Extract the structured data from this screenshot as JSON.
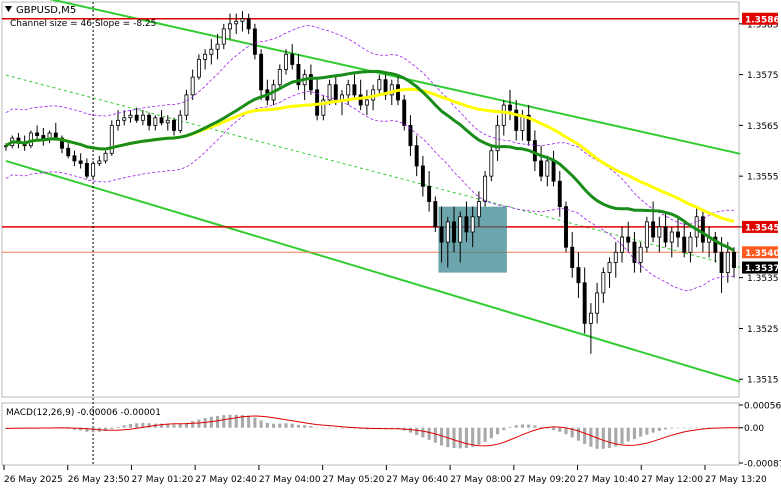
{
  "header": {
    "symbol": "GBPUSD,M5",
    "indicator_note": "Channel size = 46 Slope = -8.25"
  },
  "chart_data": {
    "type": "candlestick",
    "symbol": "GBPUSD",
    "timeframe": "M5",
    "y_axis_ticks": [
      "1.3585",
      "1.3575",
      "1.3565",
      "1.3555",
      "1.3545",
      "1.3535",
      "1.3525",
      "1.3515"
    ],
    "ylim": [
      1.35115,
      1.35893
    ],
    "x_axis_labels": [
      "26 May 2025",
      "26 May 23:50",
      "27 May 01:20",
      "27 May 02:40",
      "27 May 04:00",
      "27 May 05:20",
      "27 May 06:40",
      "27 May 08:00",
      "27 May 09:20",
      "27 May 10:40",
      "27 May 12:00",
      "27 May 13:20"
    ],
    "price_tags": [
      {
        "label": "1.3586",
        "value": 1.3586,
        "color": "#e00000"
      },
      {
        "label": "1.3545",
        "value": 1.3545,
        "color": "#e00000"
      },
      {
        "label": "1.3540",
        "value": 1.354,
        "color": "#ff5a1f"
      },
      {
        "label": "1.3537",
        "value": 1.3537,
        "color": "#000000"
      }
    ],
    "horizontal_levels": [
      1.3586,
      1.3545,
      1.354
    ],
    "channel": {
      "upper": [
        [
          0,
          1.35918
        ],
        [
          118,
          1.35594
        ]
      ],
      "lower": [
        [
          0,
          1.3558
        ],
        [
          118,
          1.35145
        ]
      ],
      "middle": [
        [
          0,
          1.35749
        ],
        [
          118,
          1.3537
        ]
      ]
    },
    "highlight_zone": {
      "from_index": 70,
      "to_index": 80,
      "high": 1.3549,
      "low": 1.3536
    },
    "ohlc": [
      [
        1.3561,
        1.35615,
        1.356,
        1.3561
      ],
      [
        1.3561,
        1.3563,
        1.35605,
        1.35625
      ],
      [
        1.35625,
        1.35635,
        1.35605,
        1.35615
      ],
      [
        1.35615,
        1.3563,
        1.356,
        1.3561
      ],
      [
        1.3561,
        1.3564,
        1.35605,
        1.35635
      ],
      [
        1.35635,
        1.3565,
        1.3562,
        1.3563
      ],
      [
        1.3563,
        1.35645,
        1.3561,
        1.35625
      ],
      [
        1.35625,
        1.3564,
        1.35615,
        1.35635
      ],
      [
        1.35635,
        1.35655,
        1.3562,
        1.35625
      ],
      [
        1.35625,
        1.3563,
        1.35595,
        1.35605
      ],
      [
        1.35605,
        1.35615,
        1.35585,
        1.3559
      ],
      [
        1.3559,
        1.356,
        1.3557,
        1.3558
      ],
      [
        1.3558,
        1.35595,
        1.35565,
        1.35575
      ],
      [
        1.35575,
        1.35585,
        1.35545,
        1.3555
      ],
      [
        1.3555,
        1.3558,
        1.35545,
        1.35575
      ],
      [
        1.35575,
        1.3559,
        1.3557,
        1.3558
      ],
      [
        1.3558,
        1.356,
        1.35575,
        1.35595
      ],
      [
        1.35595,
        1.3566,
        1.3559,
        1.3565
      ],
      [
        1.3565,
        1.3568,
        1.3564,
        1.3566
      ],
      [
        1.3566,
        1.3568,
        1.3565,
        1.35665
      ],
      [
        1.35665,
        1.3568,
        1.35655,
        1.3567
      ],
      [
        1.3567,
        1.35685,
        1.35655,
        1.3566
      ],
      [
        1.3566,
        1.3568,
        1.3565,
        1.3567
      ],
      [
        1.3567,
        1.35675,
        1.3564,
        1.3565
      ],
      [
        1.3565,
        1.3567,
        1.3564,
        1.35665
      ],
      [
        1.35665,
        1.3568,
        1.3565,
        1.35655
      ],
      [
        1.35655,
        1.3567,
        1.3564,
        1.3566
      ],
      [
        1.3566,
        1.35665,
        1.3563,
        1.3564
      ],
      [
        1.3564,
        1.3568,
        1.35635,
        1.3567
      ],
      [
        1.3567,
        1.3572,
        1.3566,
        1.3571
      ],
      [
        1.3571,
        1.3576,
        1.357,
        1.35745
      ],
      [
        1.35745,
        1.3579,
        1.3574,
        1.3578
      ],
      [
        1.3578,
        1.358,
        1.3576,
        1.3579
      ],
      [
        1.3579,
        1.3582,
        1.3577,
        1.358
      ],
      [
        1.358,
        1.3583,
        1.3578,
        1.3581
      ],
      [
        1.3581,
        1.3585,
        1.358,
        1.3584
      ],
      [
        1.3584,
        1.3587,
        1.3582,
        1.3585
      ],
      [
        1.3585,
        1.3587,
        1.3583,
        1.35855
      ],
      [
        1.35855,
        1.35875,
        1.35835,
        1.3586
      ],
      [
        1.3586,
        1.3587,
        1.3583,
        1.3584
      ],
      [
        1.3584,
        1.3585,
        1.3578,
        1.3579
      ],
      [
        1.3579,
        1.358,
        1.357,
        1.3572
      ],
      [
        1.3572,
        1.3574,
        1.3569,
        1.357
      ],
      [
        1.357,
        1.3574,
        1.3569,
        1.3573
      ],
      [
        1.3573,
        1.3577,
        1.3572,
        1.3576
      ],
      [
        1.3576,
        1.358,
        1.3575,
        1.3579
      ],
      [
        1.3579,
        1.3581,
        1.3576,
        1.3577
      ],
      [
        1.3577,
        1.3579,
        1.3572,
        1.3573
      ],
      [
        1.3573,
        1.3576,
        1.357,
        1.3575
      ],
      [
        1.3575,
        1.3577,
        1.3571,
        1.3572
      ],
      [
        1.3572,
        1.3574,
        1.3566,
        1.3567
      ],
      [
        1.3567,
        1.3571,
        1.3566,
        1.357
      ],
      [
        1.357,
        1.3574,
        1.3569,
        1.3573
      ],
      [
        1.3573,
        1.3575,
        1.3569,
        1.357
      ],
      [
        1.357,
        1.3572,
        1.3567,
        1.3571
      ],
      [
        1.3571,
        1.3574,
        1.3569,
        1.3573
      ],
      [
        1.3573,
        1.3575,
        1.357,
        1.3571
      ],
      [
        1.3571,
        1.3574,
        1.3568,
        1.3569
      ],
      [
        1.3569,
        1.3572,
        1.3567,
        1.357
      ],
      [
        1.357,
        1.3573,
        1.3568,
        1.3572
      ],
      [
        1.3572,
        1.3575,
        1.3571,
        1.3574
      ],
      [
        1.3574,
        1.3575,
        1.357,
        1.3571
      ],
      [
        1.3571,
        1.3574,
        1.3569,
        1.3573
      ],
      [
        1.3573,
        1.3575,
        1.3569,
        1.357
      ],
      [
        1.357,
        1.3571,
        1.3564,
        1.3565
      ],
      [
        1.3565,
        1.3567,
        1.3559,
        1.3561
      ],
      [
        1.3561,
        1.3563,
        1.3555,
        1.3557
      ],
      [
        1.3557,
        1.3559,
        1.3551,
        1.3553
      ],
      [
        1.3553,
        1.3556,
        1.3548,
        1.355
      ],
      [
        1.355,
        1.3551,
        1.3544,
        1.3545
      ],
      [
        1.3545,
        1.3549,
        1.3538,
        1.3542
      ],
      [
        1.3542,
        1.3547,
        1.3537,
        1.3546
      ],
      [
        1.3546,
        1.3549,
        1.354,
        1.3542
      ],
      [
        1.3542,
        1.3548,
        1.3538,
        1.3547
      ],
      [
        1.3547,
        1.355,
        1.3542,
        1.3544
      ],
      [
        1.3544,
        1.3549,
        1.3541,
        1.3547
      ],
      [
        1.3547,
        1.3552,
        1.3545,
        1.355
      ],
      [
        1.355,
        1.3556,
        1.3549,
        1.3555
      ],
      [
        1.3555,
        1.3561,
        1.3554,
        1.356
      ],
      [
        1.356,
        1.3567,
        1.3558,
        1.3565
      ],
      [
        1.3565,
        1.357,
        1.3563,
        1.3569
      ],
      [
        1.3569,
        1.3572,
        1.3566,
        1.3568
      ],
      [
        1.3568,
        1.357,
        1.3562,
        1.3564
      ],
      [
        1.3564,
        1.3568,
        1.3562,
        1.3567
      ],
      [
        1.3567,
        1.3569,
        1.3561,
        1.3562
      ],
      [
        1.3562,
        1.3564,
        1.3556,
        1.3558
      ],
      [
        1.3558,
        1.3561,
        1.3554,
        1.3555
      ],
      [
        1.3555,
        1.3559,
        1.3553,
        1.3558
      ],
      [
        1.3558,
        1.356,
        1.3553,
        1.3554
      ],
      [
        1.3554,
        1.3556,
        1.3547,
        1.3549
      ],
      [
        1.3549,
        1.355,
        1.354,
        1.3541
      ],
      [
        1.3541,
        1.3544,
        1.3535,
        1.3537
      ],
      [
        1.3537,
        1.354,
        1.3531,
        1.3534
      ],
      [
        1.3534,
        1.3537,
        1.3524,
        1.3526
      ],
      [
        1.3526,
        1.353,
        1.352,
        1.3528
      ],
      [
        1.3528,
        1.3534,
        1.3526,
        1.3532
      ],
      [
        1.3532,
        1.3537,
        1.353,
        1.3536
      ],
      [
        1.3536,
        1.3539,
        1.3533,
        1.3538
      ],
      [
        1.3538,
        1.3542,
        1.3535,
        1.354
      ],
      [
        1.354,
        1.3545,
        1.3538,
        1.3543
      ],
      [
        1.3543,
        1.3546,
        1.354,
        1.3542
      ],
      [
        1.3542,
        1.3544,
        1.3536,
        1.3538
      ],
      [
        1.3538,
        1.3542,
        1.3536,
        1.3541
      ],
      [
        1.3541,
        1.3547,
        1.354,
        1.3546
      ],
      [
        1.3546,
        1.355,
        1.3542,
        1.3543
      ],
      [
        1.3543,
        1.3547,
        1.354,
        1.3545
      ],
      [
        1.3545,
        1.3548,
        1.3541,
        1.3542
      ],
      [
        1.3542,
        1.3545,
        1.3539,
        1.3544
      ],
      [
        1.3544,
        1.3547,
        1.3541,
        1.3543
      ],
      [
        1.3543,
        1.3546,
        1.3539,
        1.354
      ],
      [
        1.354,
        1.3544,
        1.3538,
        1.3543
      ],
      [
        1.3543,
        1.3549,
        1.3541,
        1.3547
      ],
      [
        1.3547,
        1.3548,
        1.354,
        1.3542
      ],
      [
        1.3542,
        1.3545,
        1.3539,
        1.3543
      ],
      [
        1.3543,
        1.3544,
        1.3538,
        1.354
      ],
      [
        1.354,
        1.3543,
        1.3532,
        1.3536
      ],
      [
        1.3536,
        1.3542,
        1.3534,
        1.354
      ],
      [
        1.354,
        1.3541,
        1.3535,
        1.3537
      ]
    ],
    "macd": {
      "label": "MACD(12,26,9) -0.00006 -0.00001",
      "ticks": [
        "0.00056",
        "0.00",
        "-0.00087"
      ],
      "ylim": [
        -0.00087,
        0.00056
      ],
      "histogram": [
        -2e-05,
        -1e-05,
        -1e-05,
        0.0,
        -1e-05,
        0.0,
        0.0,
        0.0,
        1e-05,
        -1e-05,
        -3e-05,
        -5e-05,
        -7e-05,
        -0.0001,
        -0.00011,
        -0.0001,
        -8e-05,
        -3e-05,
        2e-05,
        6e-05,
        9e-05,
        0.00011,
        0.00012,
        0.00011,
        0.0001,
        0.0001,
        9e-05,
        8e-05,
        9e-05,
        0.00012,
        0.00016,
        0.0002,
        0.00024,
        0.00027,
        0.00029,
        0.00031,
        0.00032,
        0.00032,
        0.00031,
        0.00029,
        0.00025,
        0.00018,
        0.00012,
        0.0001,
        0.0001,
        0.00011,
        0.0001,
        7e-05,
        6e-05,
        4e-05,
        0.0,
        -1e-05,
        0.0,
        -1e-05,
        -2e-05,
        -1e-05,
        -2e-05,
        -3e-05,
        -4e-05,
        -3e-05,
        -2e-05,
        -3e-05,
        -3e-05,
        -4e-05,
        -7e-05,
        -0.00012,
        -0.00018,
        -0.00024,
        -0.0003,
        -0.00037,
        -0.00044,
        -0.00048,
        -0.0005,
        -0.00051,
        -0.0005,
        -0.00047,
        -0.00042,
        -0.00035,
        -0.00026,
        -0.00016,
        -6e-05,
        2e-05,
        6e-05,
        8e-05,
        8e-05,
        6e-05,
        2e-05,
        -2e-05,
        -6e-05,
        -0.0001,
        -0.00016,
        -0.00024,
        -0.00032,
        -0.0004,
        -0.00047,
        -0.00052,
        -0.00052,
        -0.0005,
        -0.00046,
        -0.0004,
        -0.00034,
        -0.00028,
        -0.00022,
        -0.00017,
        -0.00012,
        -8e-05,
        -4e-05,
        -2e-05,
        -1e-05,
        0.0,
        -1e-05,
        -1e-05,
        0.0,
        1e-05,
        0.0,
        0.0,
        -1e-05,
        -1e-05,
        -1e-05
      ]
    }
  }
}
